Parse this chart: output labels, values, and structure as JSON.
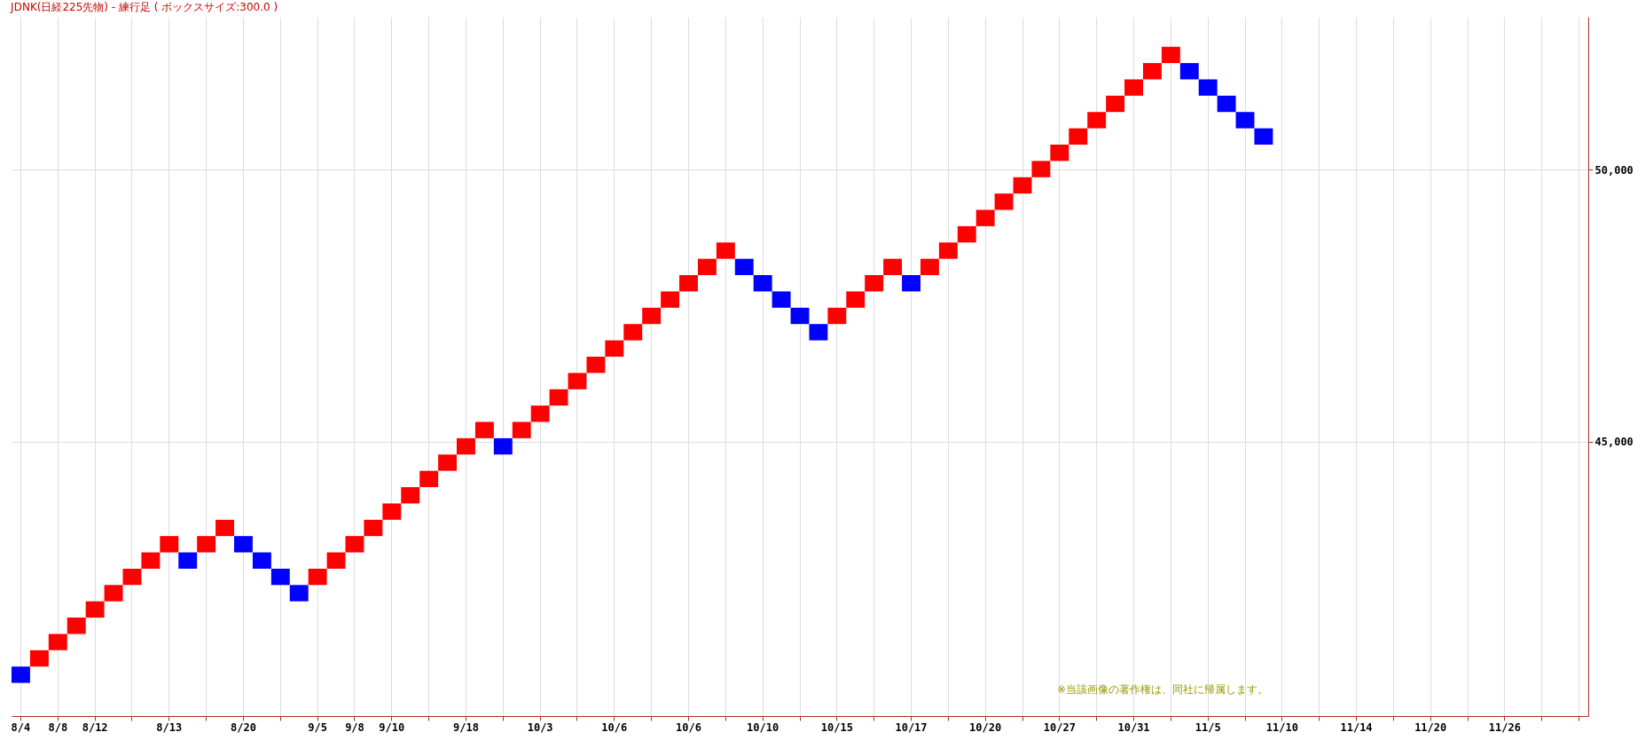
{
  "chart_data": {
    "type": "bar",
    "title": "JDNK(日経225先物) - 練行足 ( ボックスサイズ:300.0 )",
    "annotations": [
      "※当該画像の著作権は、同社に帰属します。"
    ],
    "categories": [
      "8/4",
      null,
      "8/8",
      null,
      "8/12",
      null,
      null,
      null,
      "8/13",
      null,
      null,
      null,
      "8/20",
      null,
      null,
      null,
      "9/5",
      null,
      "9/8",
      null,
      "9/10",
      null,
      null,
      null,
      "9/18",
      null,
      null,
      null,
      "10/3",
      null,
      null,
      null,
      "10/6",
      null,
      null,
      null,
      "10/6",
      null,
      null,
      null,
      "10/10",
      null,
      null,
      null,
      "10/15",
      null,
      null,
      null,
      "10/17",
      null,
      null,
      null,
      "10/20",
      null,
      null,
      null,
      "10/27",
      null,
      null,
      null,
      "10/31",
      null,
      null,
      null,
      "11/5",
      null,
      null,
      null,
      "11/10",
      null,
      null,
      null,
      "11/14",
      null,
      null,
      null,
      "11/20",
      null,
      null,
      null,
      "11/26",
      null,
      null,
      null,
      null
    ],
    "base": [
      40560,
      40860,
      41160,
      41460,
      41760,
      42060,
      42360,
      42660,
      42960,
      42660,
      42960,
      43260,
      42960,
      42660,
      42360,
      42060,
      42360,
      42660,
      42960,
      43260,
      43560,
      43860,
      44160,
      44460,
      44760,
      45060,
      44760,
      45060,
      45360,
      45660,
      45960,
      46260,
      46560,
      46860,
      47160,
      47460,
      47760,
      48060,
      48360,
      48060,
      47760,
      47460,
      47160,
      46860,
      47160,
      47460,
      47760,
      48060,
      47760,
      48060,
      48360,
      48660,
      48960,
      49260,
      49560,
      49860,
      50160,
      50460,
      50760,
      51060,
      51360,
      51660,
      51960,
      51660,
      51360,
      51060,
      50760,
      50460,
      null,
      null,
      null,
      null,
      null,
      null,
      null,
      null,
      null,
      null,
      null,
      null,
      null,
      null,
      null,
      null,
      null
    ],
    "values": [
      300,
      300,
      300,
      300,
      300,
      300,
      300,
      300,
      300,
      300,
      300,
      300,
      300,
      300,
      300,
      300,
      300,
      300,
      300,
      300,
      300,
      300,
      300,
      300,
      300,
      300,
      300,
      300,
      300,
      300,
      300,
      300,
      300,
      300,
      300,
      300,
      300,
      300,
      300,
      300,
      300,
      300,
      300,
      300,
      300,
      300,
      300,
      300,
      300,
      300,
      300,
      300,
      300,
      300,
      300,
      300,
      300,
      300,
      300,
      300,
      300,
      300,
      300,
      300,
      300,
      300,
      300,
      300,
      null,
      null,
      null,
      null,
      null,
      null,
      null,
      null,
      null,
      null,
      null,
      null,
      null,
      null,
      null,
      null,
      null
    ],
    "colors": [
      "#0000ff",
      "#ff0000",
      "#ff0000",
      "#ff0000",
      "#ff0000",
      "#ff0000",
      "#ff0000",
      "#ff0000",
      "#ff0000",
      "#0000ff",
      "#ff0000",
      "#ff0000",
      "#0000ff",
      "#0000ff",
      "#0000ff",
      "#0000ff",
      "#ff0000",
      "#ff0000",
      "#ff0000",
      "#ff0000",
      "#ff0000",
      "#ff0000",
      "#ff0000",
      "#ff0000",
      "#ff0000",
      "#ff0000",
      "#0000ff",
      "#ff0000",
      "#ff0000",
      "#ff0000",
      "#ff0000",
      "#ff0000",
      "#ff0000",
      "#ff0000",
      "#ff0000",
      "#ff0000",
      "#ff0000",
      "#ff0000",
      "#ff0000",
      "#0000ff",
      "#0000ff",
      "#0000ff",
      "#0000ff",
      "#0000ff",
      "#ff0000",
      "#ff0000",
      "#ff0000",
      "#ff0000",
      "#0000ff",
      "#ff0000",
      "#ff0000",
      "#ff0000",
      "#ff0000",
      "#ff0000",
      "#ff0000",
      "#ff0000",
      "#ff0000",
      "#ff0000",
      "#ff0000",
      "#ff0000",
      "#ff0000",
      "#ff0000",
      "#ff0000",
      "#0000ff",
      "#0000ff",
      "#0000ff",
      "#0000ff",
      "#0000ff",
      null,
      null,
      null,
      null,
      null,
      null,
      null,
      null,
      null,
      null,
      null,
      null,
      null,
      null,
      null,
      null,
      null
    ],
    "ylim": [
      39950,
      52810
    ],
    "yticks": [
      {
        "value": 45000,
        "label": "45,000"
      },
      {
        "value": 50000,
        "label": "50,000"
      }
    ],
    "grid": true
  }
}
